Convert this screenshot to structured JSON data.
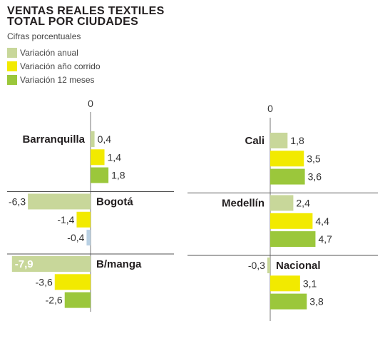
{
  "title_line1": "VENTAS REALES TEXTILES",
  "title_line2": "TOTAL POR CIUDADES",
  "subtitle": "Cifras porcentuales",
  "legend": [
    {
      "label": "Variación anual",
      "color": "#c8d79a"
    },
    {
      "label": "Variación año corrido",
      "color": "#f2ea00"
    },
    {
      "label": "Variación 12 meses",
      "color": "#9bc73b"
    }
  ],
  "chart_data": {
    "type": "bar",
    "orientation": "horizontal",
    "zero_label": "0",
    "series": [
      {
        "name": "Variación anual",
        "color": "#c8d79a"
      },
      {
        "name": "Variación año corrido",
        "color": "#f2ea00"
      },
      {
        "name": "Variación 12 meses",
        "color": "#9bc73b"
      }
    ],
    "cities": [
      {
        "name": "Barranquilla",
        "values": [
          0.4,
          1.4,
          1.8
        ],
        "labels": [
          "0,4",
          "1,4",
          "1,8"
        ]
      },
      {
        "name": "Bogotá",
        "values": [
          -6.3,
          -1.4,
          -0.4
        ],
        "labels": [
          "-6,3",
          "-1,4",
          "-0,4"
        ]
      },
      {
        "name": "B/manga",
        "values": [
          -7.9,
          -3.6,
          -2.6
        ],
        "labels": [
          "-7,9",
          "-3,6",
          "-2,6"
        ]
      },
      {
        "name": "Cali",
        "values": [
          1.8,
          3.5,
          3.6
        ],
        "labels": [
          "1,8",
          "3,5",
          "3,6"
        ]
      },
      {
        "name": "Medellín",
        "values": [
          2.4,
          4.4,
          4.7
        ],
        "labels": [
          "2,4",
          "4,4",
          "4,7"
        ]
      },
      {
        "name": "Nacional",
        "values": [
          -0.3,
          3.1,
          3.8
        ],
        "labels": [
          "-0,3",
          "3,1",
          "3,8"
        ]
      }
    ]
  }
}
